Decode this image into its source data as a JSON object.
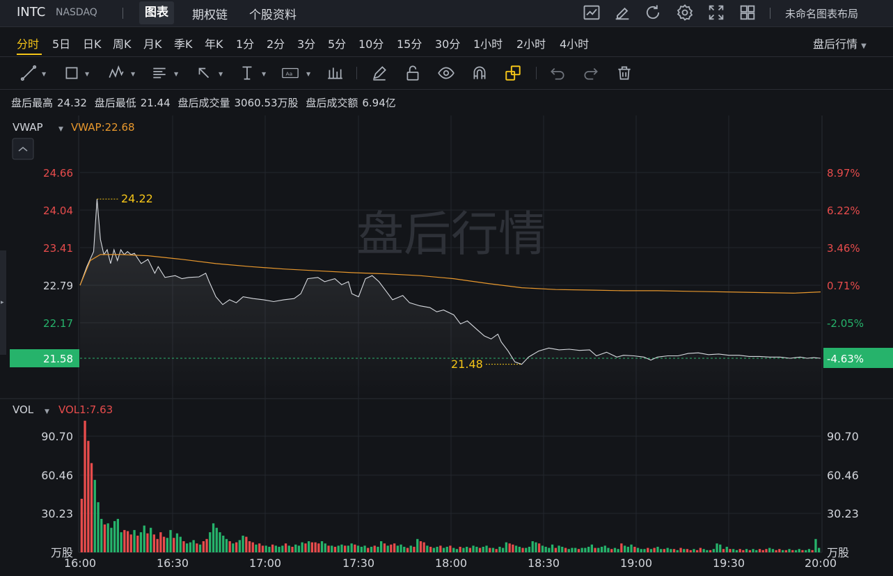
{
  "header": {
    "symbol": "INTC",
    "exchange": "NASDAQ",
    "tabs": [
      {
        "label": "图表"
      },
      {
        "label": "期权链"
      },
      {
        "label": "个股资料"
      }
    ],
    "layout_name": "未命名图表布局"
  },
  "timeframes": [
    "分时",
    "5日",
    "日K",
    "周K",
    "月K",
    "季K",
    "年K",
    "1分",
    "2分",
    "3分",
    "5分",
    "10分",
    "15分",
    "30分",
    "1小时",
    "2小时",
    "4小时"
  ],
  "session_select": "盘后行情",
  "stats": {
    "high_label": "盘后最高",
    "high": "24.32",
    "low_label": "盘后最低",
    "low": "21.44",
    "vol_label": "盘后成交量",
    "vol": "3060.53万股",
    "amt_label": "盘后成交额",
    "amt": "6.94亿"
  },
  "indicators": {
    "vwap_name": "VWAP",
    "vwap_value": "VWAP:22.68",
    "vol_name": "VOL",
    "vol_value": "VOL1:7.63"
  },
  "colors": {
    "up": "#e84c4c",
    "down": "#26b36b",
    "vwap": "#e8982d",
    "price": "#d8dbe0",
    "accent": "#f5c518"
  },
  "chart_data": {
    "type": "line",
    "watermark": "盘后行情",
    "price_ticks": [
      "24.66",
      "24.04",
      "23.41",
      "22.79",
      "22.17",
      "21.58"
    ],
    "pct_ticks": [
      "8.97%",
      "6.22%",
      "3.46%",
      "0.71%",
      "-2.05%",
      "-4.63%"
    ],
    "current_price": "21.58",
    "current_pct": "-4.63%",
    "high_annotation": "24.22",
    "low_annotation": "21.48",
    "ylim": [
      21.3,
      24.8
    ],
    "x_labels": [
      "16:00",
      "16:30",
      "17:00",
      "17:30",
      "18:00",
      "18:30",
      "19:00",
      "19:30",
      "20:00"
    ],
    "price_series": [
      [
        0,
        22.79
      ],
      [
        2,
        23.1
      ],
      [
        4,
        23.35
      ],
      [
        5,
        24.22
      ],
      [
        6,
        23.55
      ],
      [
        7,
        23.3
      ],
      [
        8,
        23.38
      ],
      [
        9,
        23.15
      ],
      [
        10,
        23.38
      ],
      [
        11,
        23.2
      ],
      [
        12,
        23.38
      ],
      [
        13,
        23.3
      ],
      [
        14,
        23.35
      ],
      [
        15,
        23.3
      ],
      [
        16,
        23.32
      ],
      [
        18,
        23.15
      ],
      [
        20,
        23.22
      ],
      [
        22,
        22.99
      ],
      [
        23,
        23.1
      ],
      [
        25,
        22.92
      ],
      [
        28,
        22.95
      ],
      [
        30,
        22.9
      ],
      [
        32,
        22.92
      ],
      [
        35,
        22.93
      ],
      [
        37,
        22.99
      ],
      [
        38,
        22.85
      ],
      [
        40,
        22.6
      ],
      [
        42,
        22.47
      ],
      [
        44,
        22.55
      ],
      [
        46,
        22.5
      ],
      [
        48,
        22.6
      ],
      [
        51,
        22.57
      ],
      [
        54,
        22.55
      ],
      [
        57,
        22.52
      ],
      [
        60,
        22.55
      ],
      [
        63,
        22.57
      ],
      [
        65,
        22.65
      ],
      [
        67,
        22.9
      ],
      [
        70,
        22.92
      ],
      [
        72,
        22.85
      ],
      [
        75,
        22.9
      ],
      [
        77,
        22.8
      ],
      [
        79,
        22.85
      ],
      [
        80,
        22.65
      ],
      [
        82,
        22.6
      ],
      [
        84,
        22.9
      ],
      [
        86,
        22.95
      ],
      [
        88,
        22.85
      ],
      [
        90,
        22.7
      ],
      [
        92,
        22.55
      ],
      [
        95,
        22.62
      ],
      [
        97,
        22.5
      ],
      [
        100,
        22.45
      ],
      [
        103,
        22.42
      ],
      [
        105,
        22.35
      ],
      [
        107,
        22.38
      ],
      [
        110,
        22.3
      ],
      [
        112,
        22.15
      ],
      [
        114,
        22.2
      ],
      [
        117,
        22.05
      ],
      [
        119,
        21.95
      ],
      [
        121,
        21.9
      ],
      [
        123,
        21.98
      ],
      [
        124,
        21.85
      ],
      [
        126,
        21.7
      ],
      [
        128,
        21.52
      ],
      [
        130,
        21.48
      ],
      [
        132,
        21.6
      ],
      [
        135,
        21.7
      ],
      [
        138,
        21.75
      ],
      [
        141,
        21.72
      ],
      [
        144,
        21.73
      ],
      [
        147,
        21.71
      ],
      [
        150,
        21.72
      ],
      [
        152,
        21.62
      ],
      [
        155,
        21.68
      ],
      [
        158,
        21.6
      ],
      [
        160,
        21.63
      ],
      [
        163,
        21.62
      ],
      [
        166,
        21.6
      ],
      [
        168,
        21.55
      ],
      [
        170,
        21.6
      ],
      [
        173,
        21.62
      ],
      [
        176,
        21.62
      ],
      [
        179,
        21.66
      ],
      [
        182,
        21.67
      ],
      [
        185,
        21.64
      ],
      [
        188,
        21.65
      ],
      [
        191,
        21.63
      ],
      [
        194,
        21.63
      ],
      [
        197,
        21.61
      ],
      [
        200,
        21.61
      ],
      [
        203,
        21.6
      ],
      [
        206,
        21.6
      ],
      [
        209,
        21.58
      ],
      [
        212,
        21.6
      ],
      [
        214,
        21.58
      ],
      [
        216,
        21.59
      ],
      [
        218,
        21.58
      ]
    ],
    "vwap_series": [
      [
        0,
        22.79
      ],
      [
        3,
        23.2
      ],
      [
        6,
        23.3
      ],
      [
        12,
        23.3
      ],
      [
        20,
        23.28
      ],
      [
        30,
        23.22
      ],
      [
        40,
        23.15
      ],
      [
        50,
        23.1
      ],
      [
        60,
        23.06
      ],
      [
        70,
        23.03
      ],
      [
        80,
        23.0
      ],
      [
        90,
        22.98
      ],
      [
        100,
        22.95
      ],
      [
        110,
        22.9
      ],
      [
        120,
        22.82
      ],
      [
        130,
        22.75
      ],
      [
        140,
        22.72
      ],
      [
        150,
        22.71
      ],
      [
        160,
        22.7
      ],
      [
        170,
        22.7
      ],
      [
        180,
        22.69
      ],
      [
        190,
        22.68
      ],
      [
        200,
        22.67
      ],
      [
        210,
        22.66
      ],
      [
        218,
        22.68
      ]
    ],
    "vol_ticks": [
      "90.70",
      "60.46",
      "30.23"
    ],
    "vol_unit": "万股",
    "vol_ylim": [
      0,
      121
    ],
    "volumes_ud": [
      [
        48,
        1
      ],
      [
        118,
        1
      ],
      [
        100,
        1
      ],
      [
        80,
        1
      ],
      [
        65,
        0
      ],
      [
        45,
        0
      ],
      [
        30,
        0
      ],
      [
        25,
        1
      ],
      [
        26,
        0
      ],
      [
        22,
        0
      ],
      [
        28,
        0
      ],
      [
        30,
        0
      ],
      [
        18,
        0
      ],
      [
        20,
        1
      ],
      [
        19,
        1
      ],
      [
        16,
        1
      ],
      [
        20,
        0
      ],
      [
        15,
        1
      ],
      [
        18,
        0
      ],
      [
        24,
        0
      ],
      [
        17,
        1
      ],
      [
        22,
        0
      ],
      [
        16,
        1
      ],
      [
        12,
        1
      ],
      [
        18,
        1
      ],
      [
        14,
        1
      ],
      [
        13,
        0
      ],
      [
        20,
        0
      ],
      [
        13,
        1
      ],
      [
        17,
        0
      ],
      [
        14,
        0
      ],
      [
        10,
        1
      ],
      [
        8,
        0
      ],
      [
        9,
        0
      ],
      [
        11,
        0
      ],
      [
        8,
        1
      ],
      [
        7,
        0
      ],
      [
        10,
        1
      ],
      [
        12,
        1
      ],
      [
        18,
        0
      ],
      [
        26,
        0
      ],
      [
        22,
        0
      ],
      [
        18,
        0
      ],
      [
        15,
        0
      ],
      [
        12,
        0
      ],
      [
        10,
        1
      ],
      [
        8,
        0
      ],
      [
        9,
        1
      ],
      [
        11,
        0
      ],
      [
        15,
        0
      ],
      [
        14,
        1
      ],
      [
        10,
        1
      ],
      [
        9,
        1
      ],
      [
        7,
        0
      ],
      [
        8,
        1
      ],
      [
        6,
        1
      ],
      [
        6,
        0
      ],
      [
        5,
        0
      ],
      [
        7,
        1
      ],
      [
        6,
        0
      ],
      [
        5,
        0
      ],
      [
        6,
        0
      ],
      [
        8,
        1
      ],
      [
        6,
        0
      ],
      [
        5,
        1
      ],
      [
        7,
        0
      ],
      [
        6,
        0
      ],
      [
        9,
        0
      ],
      [
        8,
        1
      ],
      [
        10,
        0
      ],
      [
        9,
        1
      ],
      [
        9,
        1
      ],
      [
        8,
        1
      ],
      [
        10,
        0
      ],
      [
        8,
        0
      ],
      [
        6,
        1
      ],
      [
        6,
        0
      ],
      [
        5,
        1
      ],
      [
        6,
        0
      ],
      [
        7,
        0
      ],
      [
        6,
        1
      ],
      [
        6,
        0
      ],
      [
        8,
        0
      ],
      [
        7,
        1
      ],
      [
        6,
        0
      ],
      [
        5,
        0
      ],
      [
        6,
        0
      ],
      [
        4,
        1
      ],
      [
        5,
        0
      ],
      [
        6,
        1
      ],
      [
        5,
        0
      ],
      [
        10,
        0
      ],
      [
        8,
        1
      ],
      [
        6,
        0
      ],
      [
        7,
        1
      ],
      [
        8,
        1
      ],
      [
        6,
        0
      ],
      [
        7,
        0
      ],
      [
        5,
        0
      ],
      [
        4,
        1
      ],
      [
        6,
        0
      ],
      [
        5,
        1
      ],
      [
        12,
        0
      ],
      [
        10,
        1
      ],
      [
        9,
        1
      ],
      [
        6,
        0
      ],
      [
        5,
        1
      ],
      [
        4,
        0
      ],
      [
        5,
        0
      ],
      [
        6,
        1
      ],
      [
        4,
        0
      ],
      [
        5,
        0
      ],
      [
        6,
        1
      ],
      [
        4,
        0
      ],
      [
        3,
        0
      ],
      [
        5,
        1
      ],
      [
        4,
        0
      ],
      [
        5,
        0
      ],
      [
        4,
        1
      ],
      [
        6,
        0
      ],
      [
        5,
        0
      ],
      [
        4,
        1
      ],
      [
        5,
        0
      ],
      [
        6,
        0
      ],
      [
        4,
        1
      ],
      [
        4,
        0
      ],
      [
        3,
        1
      ],
      [
        5,
        0
      ],
      [
        4,
        0
      ],
      [
        9,
        0
      ],
      [
        8,
        1
      ],
      [
        7,
        1
      ],
      [
        6,
        0
      ],
      [
        5,
        0
      ],
      [
        4,
        1
      ],
      [
        4,
        0
      ],
      [
        5,
        0
      ],
      [
        10,
        0
      ],
      [
        9,
        0
      ],
      [
        8,
        1
      ],
      [
        6,
        0
      ],
      [
        5,
        0
      ],
      [
        4,
        0
      ],
      [
        7,
        0
      ],
      [
        4,
        1
      ],
      [
        6,
        0
      ],
      [
        5,
        0
      ],
      [
        4,
        1
      ],
      [
        3,
        0
      ],
      [
        4,
        0
      ],
      [
        4,
        0
      ],
      [
        3,
        1
      ],
      [
        4,
        0
      ],
      [
        4,
        0
      ],
      [
        5,
        0
      ],
      [
        7,
        0
      ],
      [
        4,
        1
      ],
      [
        4,
        0
      ],
      [
        5,
        0
      ],
      [
        6,
        0
      ],
      [
        4,
        0
      ],
      [
        3,
        1
      ],
      [
        4,
        0
      ],
      [
        3,
        0
      ],
      [
        8,
        1
      ],
      [
        6,
        0
      ],
      [
        5,
        0
      ],
      [
        7,
        0
      ],
      [
        5,
        1
      ],
      [
        4,
        0
      ],
      [
        3,
        0
      ],
      [
        3,
        0
      ],
      [
        4,
        1
      ],
      [
        3,
        0
      ],
      [
        4,
        1
      ],
      [
        5,
        0
      ],
      [
        3,
        0
      ],
      [
        3,
        1
      ],
      [
        4,
        0
      ],
      [
        3,
        0
      ],
      [
        3,
        1
      ],
      [
        2,
        0
      ],
      [
        4,
        1
      ],
      [
        3,
        0
      ],
      [
        3,
        1
      ],
      [
        2,
        1
      ],
      [
        3,
        0
      ],
      [
        2,
        1
      ],
      [
        4,
        1
      ],
      [
        3,
        0
      ],
      [
        2,
        0
      ],
      [
        2,
        1
      ],
      [
        3,
        0
      ],
      [
        8,
        0
      ],
      [
        7,
        0
      ],
      [
        3,
        1
      ],
      [
        5,
        0
      ],
      [
        3,
        1
      ],
      [
        3,
        0
      ],
      [
        2,
        0
      ],
      [
        3,
        1
      ],
      [
        2,
        1
      ],
      [
        3,
        0
      ],
      [
        2,
        1
      ],
      [
        3,
        0
      ],
      [
        2,
        0
      ],
      [
        3,
        1
      ],
      [
        2,
        1
      ],
      [
        3,
        1
      ],
      [
        4,
        0
      ],
      [
        3,
        0
      ],
      [
        2,
        1
      ],
      [
        3,
        1
      ],
      [
        2,
        0
      ],
      [
        2,
        1
      ],
      [
        3,
        0
      ],
      [
        2,
        1
      ],
      [
        2,
        0
      ],
      [
        3,
        0
      ],
      [
        2,
        1
      ],
      [
        2,
        0
      ],
      [
        3,
        0
      ],
      [
        2,
        1
      ],
      [
        12,
        0
      ],
      [
        4,
        0
      ]
    ]
  }
}
